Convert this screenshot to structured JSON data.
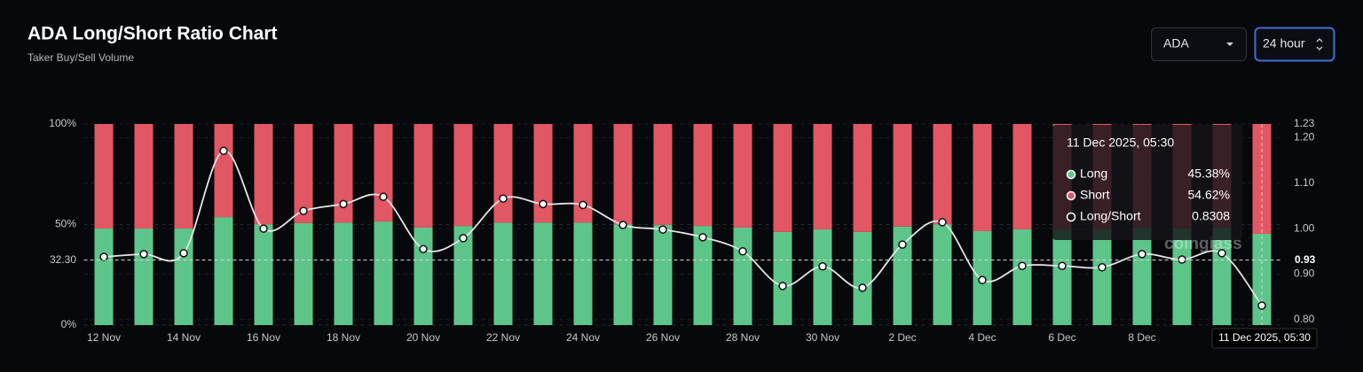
{
  "header": {
    "title": "ADA Long/Short Ratio Chart",
    "subtitle": "Taker Buy/Sell Volume"
  },
  "controls": {
    "symbol": "ADA",
    "interval": "24 hour"
  },
  "chart_data": {
    "type": "bar",
    "stacked": true,
    "categories": [
      "12 Nov",
      null,
      "14 Nov",
      null,
      "16 Nov",
      null,
      "18 Nov",
      null,
      "20 Nov",
      null,
      "22 Nov",
      null,
      "24 Nov",
      null,
      "26 Nov",
      null,
      "28 Nov",
      null,
      "30 Nov",
      null,
      "2 Dec",
      null,
      "4 Dec",
      null,
      "6 Dec",
      null,
      "8 Dec",
      null,
      null,
      null
    ],
    "series": [
      {
        "name": "Long",
        "color": "#5ec58a",
        "values": [
          48,
          48,
          48,
          53.7,
          50,
          50.7,
          51,
          51.5,
          48.5,
          49.3,
          51,
          51,
          51,
          50,
          49.8,
          49.3,
          48.5,
          46.3,
          47.6,
          46.3,
          49,
          50,
          46.7,
          47.6,
          47.9,
          47.8,
          48.6,
          48.2,
          48.6,
          45.38
        ]
      },
      {
        "name": "Short",
        "color": "#e15764",
        "values": [
          52,
          52,
          52,
          46.3,
          50,
          49.3,
          49,
          48.5,
          51.5,
          50.7,
          49,
          49,
          49,
          50,
          50.2,
          50.7,
          51.5,
          53.7,
          52.4,
          53.7,
          51,
          50,
          53.3,
          52.4,
          52.1,
          52.2,
          51.4,
          51.8,
          51.4,
          54.62
        ]
      },
      {
        "name": "Long/Short",
        "type": "line",
        "axis": "y2",
        "color": "#e6e6e6",
        "values": [
          0.938,
          0.944,
          0.946,
          1.171,
          1.0,
          1.039,
          1.054,
          1.07,
          0.955,
          0.979,
          1.066,
          1.054,
          1.052,
          1.008,
          0.998,
          0.981,
          0.95,
          0.874,
          0.917,
          0.87,
          0.965,
          1.014,
          0.887,
          0.918,
          0.918,
          0.915,
          0.944,
          0.932,
          0.946,
          0.8308
        ]
      }
    ],
    "ylim": [
      0,
      100
    ],
    "yticks": [
      {
        "value": 0,
        "label": "0%"
      },
      {
        "value": 50,
        "label": "50%"
      },
      {
        "value": 100,
        "label": "100%"
      }
    ],
    "y2lim": [
      0.788,
      1.23
    ],
    "y2ticks": [
      {
        "value": 0.8,
        "label": "0.80"
      },
      {
        "value": 0.9,
        "label": "0.90"
      },
      {
        "value": 1,
        "label": "1.00"
      },
      {
        "value": 1.1,
        "label": "1.10"
      },
      {
        "value": 1.2,
        "label": "1.20"
      },
      1.23
    ],
    "grid": true,
    "crosshair": {
      "x": "11 Dec 2025, 05:30",
      "y": {
        "value": 32.3,
        "label": "32.30"
      },
      "y2": 0.93
    },
    "tooltip": {
      "title": "11 Dec 2025, 05:30",
      "labels": [
        "45.38%",
        "54.62%",
        "0.8308"
      ]
    },
    "watermark": "coinglass"
  }
}
